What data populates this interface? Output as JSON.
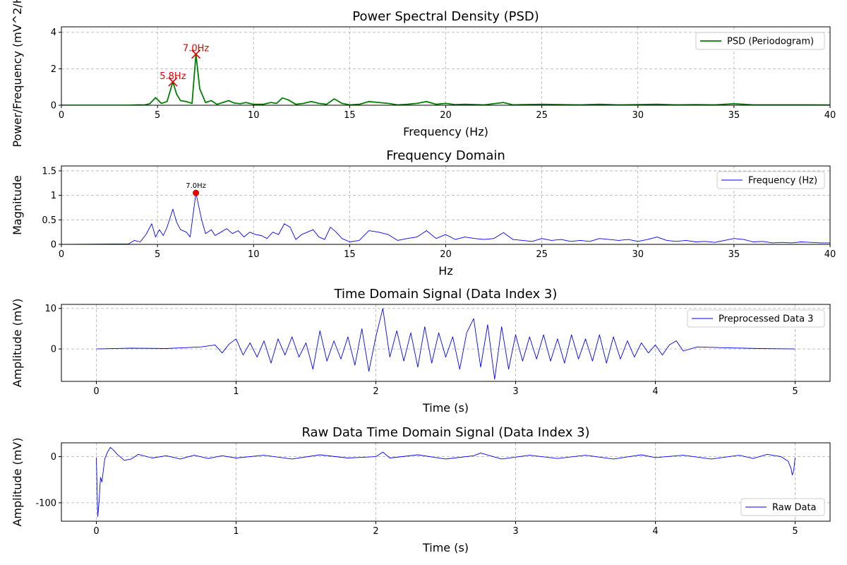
{
  "colors": {
    "psd_line": "#008000",
    "line_blue": "#0000ff",
    "peak_red": "#e00000",
    "grid": "#b0b0b0"
  },
  "chart_data": [
    {
      "id": "psd",
      "type": "line",
      "title": "Power Spectral Density (PSD)",
      "xlabel": "Frequency (Hz)",
      "ylabel": "Power/Frequency (mV^2/Hz)",
      "xlim": [
        0,
        40
      ],
      "ylim": [
        0,
        4.3
      ],
      "xticks": [
        0,
        5,
        10,
        15,
        20,
        25,
        30,
        35,
        40
      ],
      "yticks": [
        0,
        2,
        4
      ],
      "grid": true,
      "legend_position": "upper right",
      "series": [
        {
          "name": "PSD (Periodogram)",
          "x": [
            0,
            3.5,
            4.0,
            4.3,
            4.6,
            4.9,
            5.2,
            5.5,
            5.8,
            6.0,
            6.2,
            6.5,
            6.8,
            7.0,
            7.2,
            7.5,
            7.8,
            8.1,
            8.4,
            8.7,
            9.0,
            9.3,
            9.6,
            10.0,
            10.5,
            10.9,
            11.2,
            11.5,
            11.8,
            12.2,
            12.6,
            13.0,
            13.4,
            13.8,
            14.2,
            14.6,
            15.0,
            15.5,
            16.0,
            16.5,
            17.0,
            17.5,
            18.0,
            18.5,
            19.0,
            19.5,
            20.0,
            20.5,
            21.0,
            22.0,
            23.0,
            23.5,
            24.0,
            25.0,
            26.0,
            27.0,
            28.0,
            29.0,
            30.0,
            31.0,
            32.0,
            33.0,
            34.0,
            35.0,
            35.5,
            36.0,
            37.0,
            38.0,
            39.0,
            40.0
          ],
          "y": [
            0,
            0.0,
            0.02,
            0.01,
            0.08,
            0.42,
            0.1,
            0.2,
            1.28,
            0.6,
            0.25,
            0.2,
            0.1,
            2.8,
            0.9,
            0.15,
            0.25,
            0.05,
            0.15,
            0.25,
            0.12,
            0.08,
            0.15,
            0.05,
            0.05,
            0.15,
            0.1,
            0.4,
            0.3,
            0.05,
            0.1,
            0.2,
            0.1,
            0.05,
            0.35,
            0.1,
            0.02,
            0.05,
            0.2,
            0.15,
            0.1,
            0.02,
            0.05,
            0.1,
            0.2,
            0.05,
            0.1,
            0.03,
            0.05,
            0.02,
            0.15,
            0.02,
            0.03,
            0.05,
            0.03,
            0.02,
            0.05,
            0.02,
            0.03,
            0.05,
            0.02,
            0.03,
            0.02,
            0.08,
            0.05,
            0.02,
            0.02,
            0.02,
            0.02,
            0.01
          ]
        }
      ],
      "annotations": [
        {
          "x": 5.8,
          "y": 1.28,
          "text": "5.8Hz",
          "marker": "x"
        },
        {
          "x": 7.0,
          "y": 2.8,
          "text": "7.0Hz",
          "marker": "x"
        }
      ]
    },
    {
      "id": "freq",
      "type": "line",
      "title": "Frequency Domain",
      "xlabel": "Hz",
      "ylabel": "Magnitude",
      "xlim": [
        0,
        40
      ],
      "ylim": [
        0,
        1.6
      ],
      "xticks": [
        0,
        5,
        10,
        15,
        20,
        25,
        30,
        35,
        40
      ],
      "yticks": [
        0.0,
        0.5,
        1.0,
        1.5
      ],
      "grid": true,
      "legend_position": "upper right",
      "series": [
        {
          "name": "Frequency (Hz)",
          "x": [
            0,
            3.5,
            3.8,
            4.1,
            4.4,
            4.7,
            4.9,
            5.1,
            5.3,
            5.5,
            5.8,
            6.0,
            6.2,
            6.5,
            6.7,
            7.0,
            7.3,
            7.5,
            7.8,
            8.0,
            8.3,
            8.6,
            8.9,
            9.2,
            9.5,
            9.8,
            10.1,
            10.4,
            10.7,
            11.0,
            11.3,
            11.6,
            11.9,
            12.2,
            12.5,
            12.8,
            13.1,
            13.4,
            13.7,
            14.0,
            14.3,
            14.6,
            15.0,
            15.5,
            16.0,
            16.5,
            17.0,
            17.5,
            18.0,
            18.5,
            19.0,
            19.5,
            20.0,
            20.5,
            21.0,
            21.5,
            22.0,
            22.5,
            23.0,
            23.5,
            24.0,
            24.5,
            25.0,
            25.5,
            26.0,
            26.5,
            27.0,
            27.5,
            28.0,
            28.5,
            29.0,
            29.5,
            30.0,
            30.5,
            31.0,
            31.5,
            32.0,
            32.5,
            33.0,
            33.5,
            34.0,
            34.5,
            35.0,
            35.5,
            36.0,
            36.5,
            37.0,
            37.5,
            38.0,
            38.5,
            39.0,
            39.5,
            40.0
          ],
          "y": [
            0,
            0.01,
            0.08,
            0.05,
            0.2,
            0.42,
            0.15,
            0.3,
            0.18,
            0.35,
            0.72,
            0.45,
            0.3,
            0.25,
            0.15,
            1.05,
            0.5,
            0.22,
            0.3,
            0.18,
            0.25,
            0.32,
            0.22,
            0.28,
            0.15,
            0.25,
            0.2,
            0.18,
            0.12,
            0.25,
            0.2,
            0.42,
            0.35,
            0.1,
            0.2,
            0.25,
            0.3,
            0.15,
            0.1,
            0.35,
            0.25,
            0.12,
            0.05,
            0.08,
            0.28,
            0.25,
            0.2,
            0.08,
            0.12,
            0.15,
            0.28,
            0.12,
            0.2,
            0.1,
            0.15,
            0.12,
            0.1,
            0.12,
            0.24,
            0.1,
            0.08,
            0.06,
            0.12,
            0.08,
            0.1,
            0.06,
            0.08,
            0.06,
            0.12,
            0.1,
            0.08,
            0.1,
            0.06,
            0.1,
            0.15,
            0.08,
            0.06,
            0.08,
            0.05,
            0.06,
            0.04,
            0.08,
            0.12,
            0.1,
            0.05,
            0.06,
            0.03,
            0.04,
            0.03,
            0.05,
            0.04,
            0.03,
            0.03
          ]
        }
      ],
      "annotations": [
        {
          "x": 7.0,
          "y": 1.05,
          "text": "7.0Hz",
          "marker": "o"
        }
      ]
    },
    {
      "id": "time",
      "type": "line",
      "title": "Time Domain Signal (Data Index 3)",
      "xlabel": "Time (s)",
      "ylabel": "Amplitude (mV)",
      "xlim": [
        -0.25,
        5.25
      ],
      "ylim": [
        -8,
        11
      ],
      "xticks": [
        0,
        1,
        2,
        3,
        4,
        5
      ],
      "yticks": [
        0,
        10
      ],
      "grid": true,
      "legend_position": "upper right",
      "series": [
        {
          "name": "Preprocessed Data 3",
          "x": [
            0,
            0.25,
            0.5,
            0.75,
            0.85,
            0.9,
            0.95,
            1.0,
            1.05,
            1.1,
            1.15,
            1.2,
            1.25,
            1.3,
            1.35,
            1.4,
            1.45,
            1.5,
            1.55,
            1.6,
            1.65,
            1.7,
            1.75,
            1.8,
            1.85,
            1.9,
            1.95,
            2.0,
            2.05,
            2.1,
            2.15,
            2.2,
            2.25,
            2.3,
            2.35,
            2.4,
            2.45,
            2.5,
            2.55,
            2.6,
            2.65,
            2.7,
            2.75,
            2.8,
            2.85,
            2.9,
            2.95,
            3.0,
            3.05,
            3.1,
            3.15,
            3.2,
            3.25,
            3.3,
            3.35,
            3.4,
            3.45,
            3.5,
            3.55,
            3.6,
            3.65,
            3.7,
            3.75,
            3.8,
            3.85,
            3.9,
            3.95,
            4.0,
            4.05,
            4.1,
            4.15,
            4.2,
            4.3,
            4.5,
            4.75,
            5.0
          ],
          "y": [
            0,
            0.2,
            0.1,
            0.5,
            1.0,
            -1.0,
            1.2,
            2.5,
            -1.5,
            1.5,
            -2.0,
            2.0,
            -3.5,
            2.5,
            -1.5,
            3.0,
            -2.0,
            1.5,
            -5.0,
            4.5,
            -3.0,
            2.0,
            -2.5,
            3.0,
            -4.0,
            5.0,
            -5.5,
            3.0,
            10.0,
            -2.0,
            4.5,
            -3.0,
            4.0,
            -4.5,
            5.5,
            -3.5,
            4.0,
            -2.0,
            3.0,
            -5.0,
            4.0,
            7.5,
            -4.5,
            6.0,
            -7.5,
            5.5,
            -5.0,
            3.5,
            -3.0,
            3.0,
            -2.5,
            3.5,
            -3.0,
            2.5,
            -3.5,
            3.5,
            -2.5,
            2.5,
            -3.0,
            3.5,
            -3.5,
            3.0,
            -2.5,
            2.0,
            -2.0,
            1.5,
            -1.0,
            1.0,
            -1.5,
            1.0,
            2.0,
            -0.5,
            0.5,
            0.3,
            0.1,
            0
          ]
        }
      ],
      "annotations": []
    },
    {
      "id": "raw",
      "type": "line",
      "title": "Raw Data Time Domain Signal (Data Index 3)",
      "xlabel": "Time (s)",
      "ylabel": "Amplitude (mV)",
      "xlim": [
        -0.25,
        5.25
      ],
      "ylim": [
        -140,
        30
      ],
      "xticks": [
        0,
        1,
        2,
        3,
        4,
        5
      ],
      "yticks": [
        -100,
        0
      ],
      "grid": true,
      "legend_position": "lower right",
      "series": [
        {
          "name": "Raw Data",
          "x": [
            0,
            0.01,
            0.02,
            0.03,
            0.04,
            0.06,
            0.08,
            0.1,
            0.12,
            0.15,
            0.2,
            0.25,
            0.3,
            0.4,
            0.5,
            0.6,
            0.7,
            0.8,
            0.9,
            1.0,
            1.2,
            1.4,
            1.6,
            1.8,
            2.0,
            2.05,
            2.1,
            2.3,
            2.5,
            2.7,
            2.75,
            2.9,
            3.1,
            3.3,
            3.5,
            3.7,
            3.9,
            4.0,
            4.2,
            4.4,
            4.6,
            4.7,
            4.8,
            4.9,
            4.95,
            4.97,
            4.98,
            4.99,
            5.0
          ],
          "y": [
            -2,
            -130,
            -95,
            -45,
            -55,
            -5,
            10,
            20,
            15,
            5,
            -8,
            -5,
            5,
            -3,
            2,
            -5,
            3,
            -4,
            2,
            -3,
            3,
            -5,
            4,
            -3,
            0,
            10,
            -3,
            4,
            -5,
            2,
            8,
            -5,
            3,
            -4,
            3,
            -5,
            4,
            -2,
            3,
            -5,
            3,
            -4,
            5,
            0,
            -10,
            -25,
            -40,
            -30,
            -2
          ]
        }
      ],
      "annotations": []
    }
  ]
}
